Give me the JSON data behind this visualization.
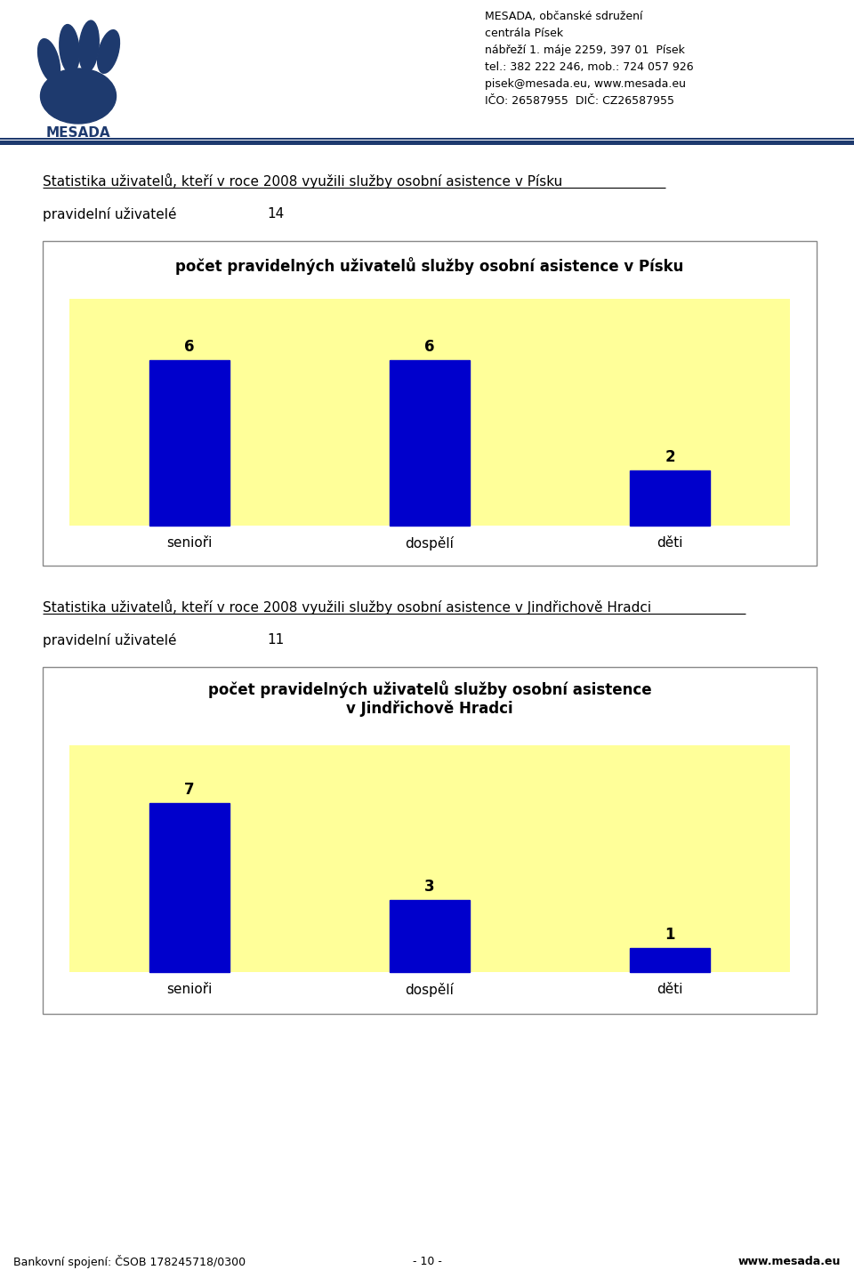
{
  "header_lines": [
    "MESADA, občanské sdružení",
    "centrála Písek",
    "nábřeží 1. máje 2259, 397 01  Písek",
    "tel.: 382 222 246, mob.: 724 057 926",
    "pisek@mesada.eu, www.mesada.eu",
    "IČO: 26587955  DIČ: CZ26587955"
  ],
  "section1_title": "Statistika uživatelů, kteří v roce 2008 využili služby osobní asistence v Písku",
  "section1_label": "pravidelní uživatelé",
  "section1_count": "14",
  "chart1_title": "počet pravidelných uživatelů služby osobní asistence v Písku",
  "chart1_categories": [
    "senioři",
    "dospělí",
    "děti"
  ],
  "chart1_values": [
    6,
    6,
    2
  ],
  "section2_title": "Statistika uživatelů, kteří v roce 2008 využili služby osobní asistence v Jindřichově Hradci",
  "section2_label": "pravidelní uživatelé",
  "section2_count": "11",
  "chart2_title": "počet pravidelných uživatelů služby osobní asistence\nv Jindřichově Hradci",
  "chart2_categories": [
    "senioři",
    "dospělí",
    "děti"
  ],
  "chart2_values": [
    7,
    3,
    1
  ],
  "bar_color": "#0000cc",
  "chart_bg_color": "#ffff99",
  "footer_left": "Bankovní spojení: ČSOB 178245718/0300",
  "footer_center": "- 10 -",
  "footer_right": "www.mesada.eu",
  "separator_color": "#1e3a6e",
  "logo_color": "#1e3a6e",
  "text_color": "#000000"
}
